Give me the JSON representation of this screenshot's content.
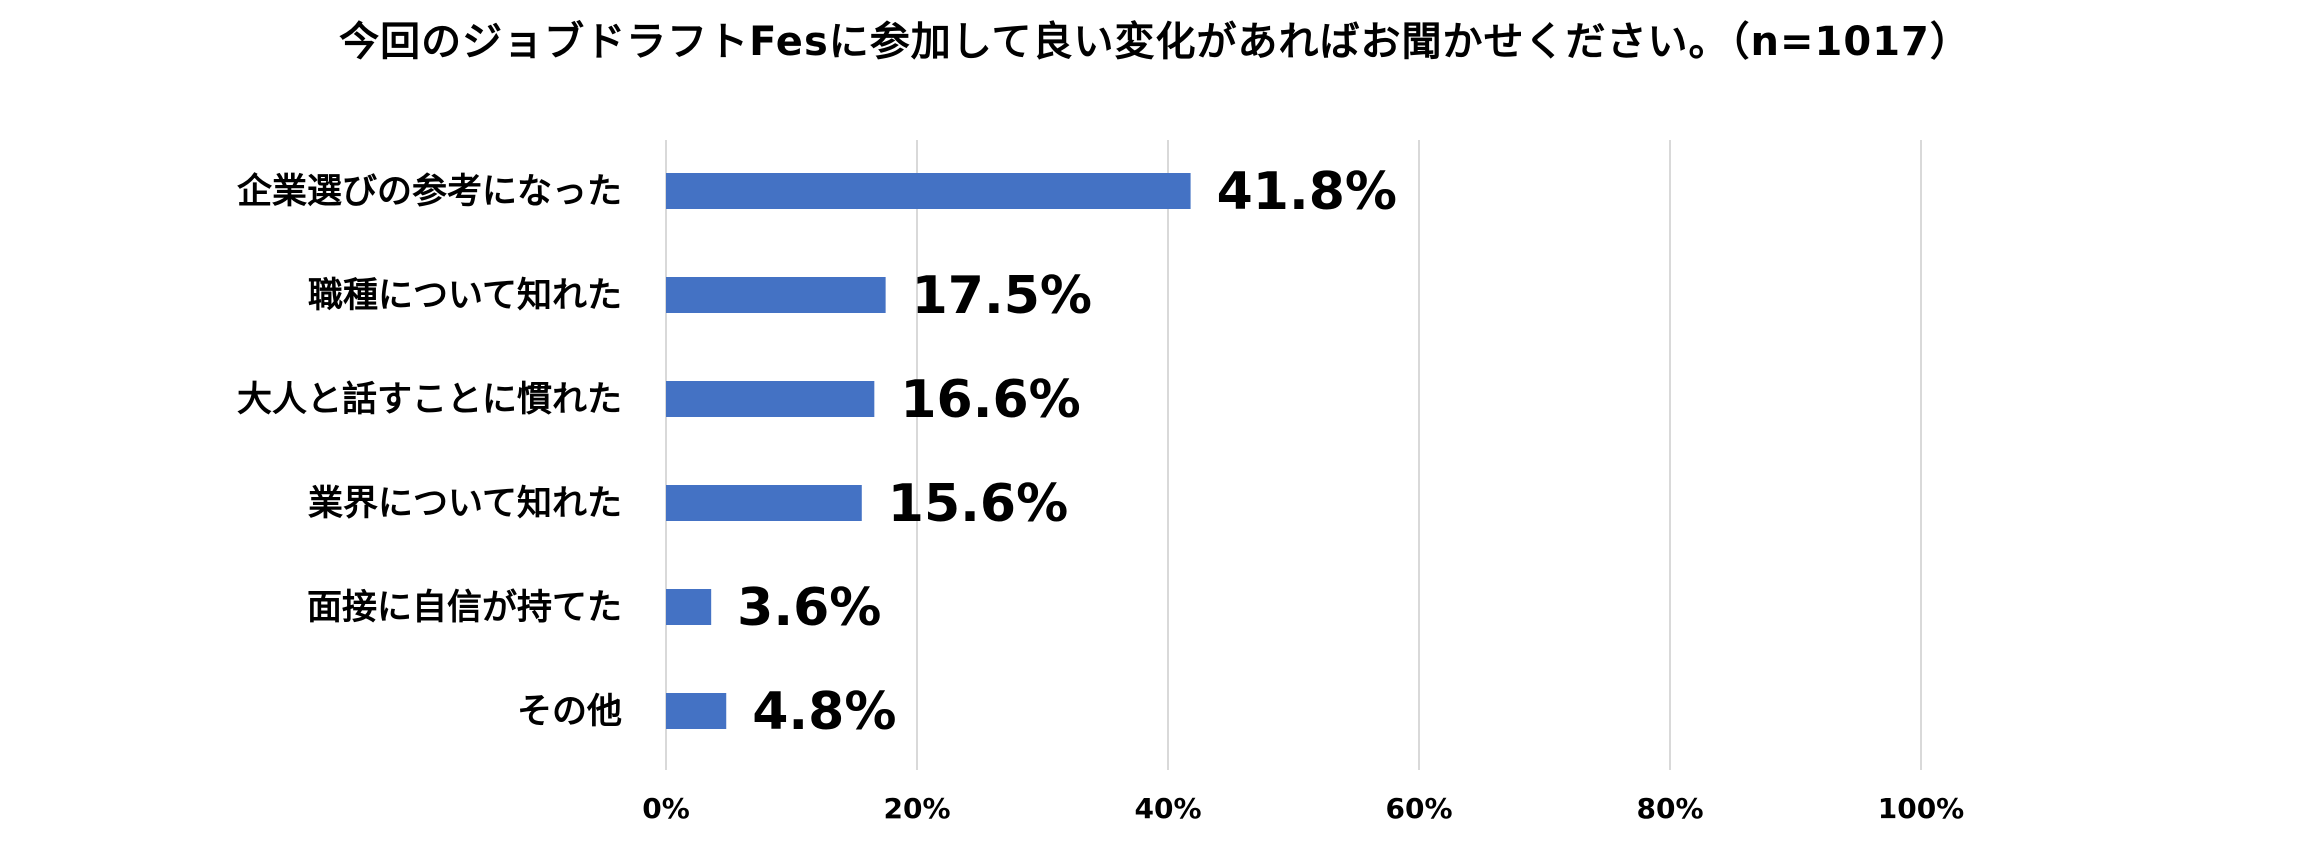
{
  "chart_data": {
    "type": "bar",
    "orientation": "horizontal",
    "title": "今回のジョブドラフトFesに参加して良い変化があればお聞かせください。（n=1017）",
    "categories": [
      "企業選びの参考になった",
      "職種について知れた",
      "大人と話すことに慣れた",
      "業界について知れた",
      "面接に自信が持てた",
      "その他"
    ],
    "values": [
      41.8,
      17.5,
      16.6,
      15.6,
      3.6,
      4.8
    ],
    "value_labels": [
      "41.8%",
      "17.5%",
      "16.6%",
      "15.6%",
      "3.6%",
      "4.8%"
    ],
    "x_ticks": [
      0,
      20,
      40,
      60,
      80,
      100
    ],
    "x_tick_labels": [
      "0%",
      "20%",
      "40%",
      "60%",
      "80%",
      "100%"
    ],
    "xlim": [
      0,
      100
    ],
    "grid": "vertical",
    "legend": "none",
    "bar_color": "#4472C4",
    "grid_color": "#D9D9D9"
  }
}
